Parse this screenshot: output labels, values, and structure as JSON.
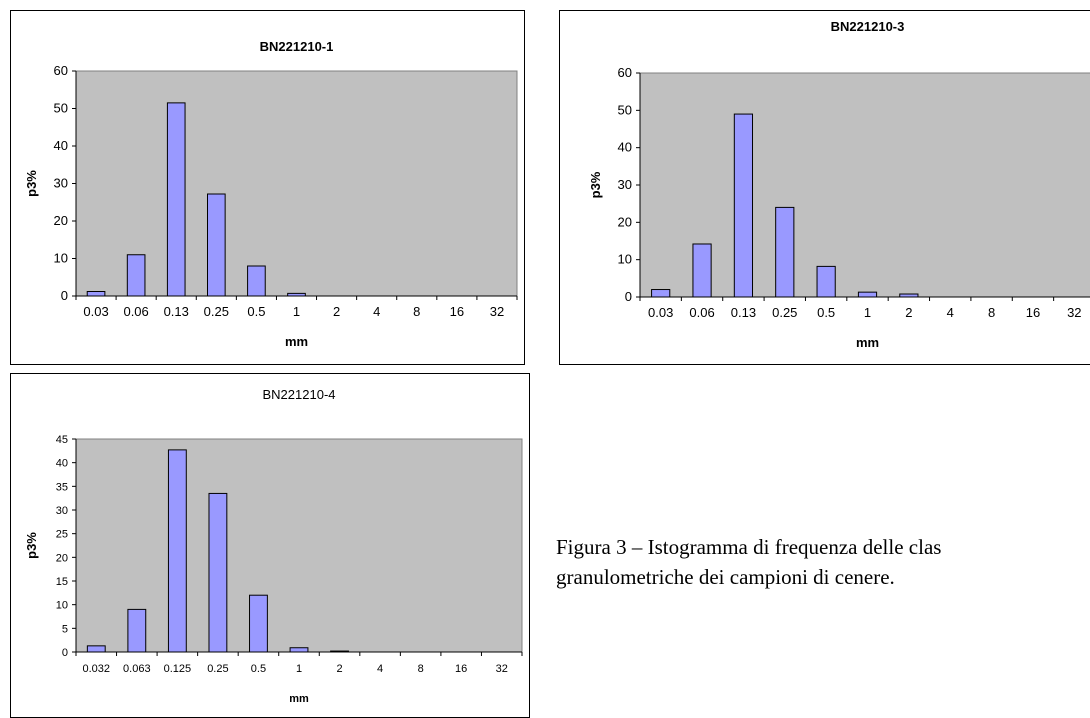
{
  "caption": {
    "line1": "Figura 3 – Istogramma di frequenza delle clas",
    "line2": "granulometriche dei campioni di cenere."
  },
  "colors": {
    "plot_bg": "#c0c0c0",
    "bar": "#9999ff",
    "border": "#000000"
  },
  "chart_data": [
    {
      "type": "bar",
      "title": "BN221210-1",
      "title_bold": true,
      "xlabel": "mm",
      "ylabel": "p3%",
      "categories": [
        "0.03",
        "0.06",
        "0.13",
        "0.25",
        "0.5",
        "1",
        "2",
        "4",
        "8",
        "16",
        "32"
      ],
      "values": [
        1.2,
        11,
        51.5,
        27.2,
        8,
        0.7,
        0,
        0,
        0,
        0,
        0
      ],
      "ylim": [
        0,
        60
      ],
      "yticks": [
        0,
        10,
        20,
        30,
        40,
        50,
        60
      ],
      "grid": false,
      "legend": "none"
    },
    {
      "type": "bar",
      "title": "BN221210-3",
      "title_bold": true,
      "xlabel": "mm",
      "ylabel": "p3%",
      "categories": [
        "0.03",
        "0.06",
        "0.13",
        "0.25",
        "0.5",
        "1",
        "2",
        "4",
        "8",
        "16",
        "32"
      ],
      "values": [
        2,
        14.2,
        49,
        24,
        8.2,
        1.3,
        0.8,
        0,
        0,
        0,
        0
      ],
      "ylim": [
        0,
        60
      ],
      "yticks": [
        0,
        10,
        20,
        30,
        40,
        50,
        60
      ],
      "grid": false,
      "legend": "none"
    },
    {
      "type": "bar",
      "title": "BN221210-4",
      "title_bold": false,
      "xlabel": "mm",
      "ylabel": "p3%",
      "categories": [
        "0.032",
        "0.063",
        "0.125",
        "0.25",
        "0.5",
        "1",
        "2",
        "4",
        "8",
        "16",
        "32"
      ],
      "values": [
        1.3,
        9,
        42.7,
        33.5,
        12,
        0.9,
        0.2,
        0,
        0,
        0,
        0
      ],
      "ylim": [
        0,
        45
      ],
      "yticks": [
        0,
        5,
        10,
        15,
        20,
        25,
        30,
        35,
        40,
        45
      ],
      "grid": false,
      "legend": "none"
    }
  ]
}
